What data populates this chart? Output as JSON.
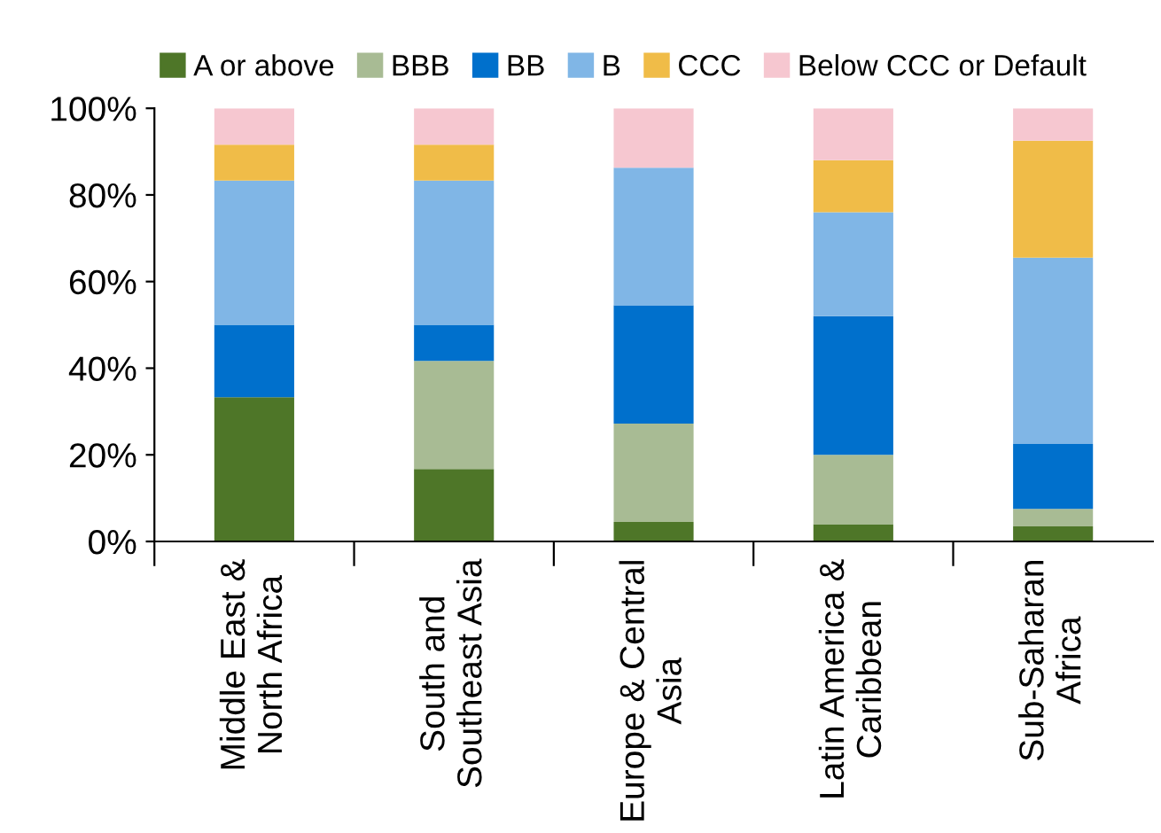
{
  "chart_data": {
    "type": "bar",
    "stacked": true,
    "categories": [
      "Middle East &\nNorth Africa",
      "South and\nSoutheast Asia",
      "Europe & Central\nAsia",
      "Latin America &\nCaribbean",
      "Sub-Saharan\nAfrica"
    ],
    "series": [
      {
        "name": "A or above",
        "color": "#4e7628",
        "values": [
          33.3,
          16.7,
          4.5,
          4,
          3.5
        ]
      },
      {
        "name": "BBB",
        "color": "#a8bb94",
        "values": [
          0,
          25,
          22.7,
          16,
          4
        ]
      },
      {
        "name": "BB",
        "color": "#0070cc",
        "values": [
          16.7,
          8.3,
          27.3,
          32,
          15
        ]
      },
      {
        "name": "B",
        "color": "#80b6e6",
        "values": [
          33.3,
          33.3,
          31.8,
          24,
          43
        ]
      },
      {
        "name": "CCC",
        "color": "#f0bc48",
        "values": [
          8.3,
          8.3,
          0,
          12,
          27
        ]
      },
      {
        "name": "Below CCC or Default",
        "color": "#f6c7d0",
        "values": [
          8.4,
          8.4,
          13.7,
          12,
          7.5
        ]
      }
    ],
    "ylim": [
      0,
      100
    ],
    "yticks": [
      {
        "value": 0,
        "label": "0%"
      },
      {
        "value": 20,
        "label": "20%"
      },
      {
        "value": 40,
        "label": "40%"
      },
      {
        "value": 60,
        "label": "60%"
      },
      {
        "value": 80,
        "label": "80%"
      },
      {
        "value": 100,
        "label": "100%"
      }
    ],
    "grid": false,
    "legend": "top"
  }
}
